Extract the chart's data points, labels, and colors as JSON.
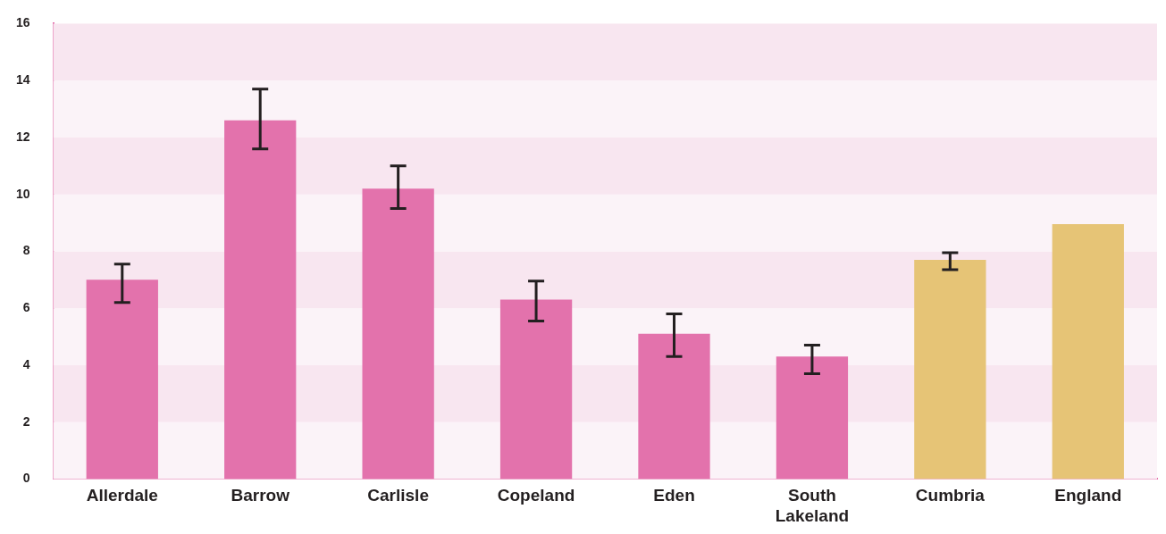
{
  "chart_data": {
    "type": "bar",
    "categories": [
      "Allerdale",
      "Barrow",
      "Carlisle",
      "Copeland",
      "Eden",
      "South Lakeland",
      "Cumbria",
      "England"
    ],
    "values": [
      7.0,
      12.6,
      10.2,
      6.3,
      5.1,
      4.3,
      7.7,
      8.95
    ],
    "colors": [
      "#e372ac",
      "#e372ac",
      "#e372ac",
      "#e372ac",
      "#e372ac",
      "#e372ac",
      "#e6c476",
      "#e6c476"
    ],
    "errors": [
      [
        6.2,
        7.55
      ],
      [
        11.6,
        13.7
      ],
      [
        9.5,
        11.0
      ],
      [
        5.55,
        6.95
      ],
      [
        4.3,
        5.8
      ],
      [
        3.7,
        4.7
      ],
      [
        7.35,
        7.95
      ],
      null
    ],
    "ylim": [
      0,
      16
    ],
    "yticks": [
      0,
      2,
      4,
      6,
      8,
      10,
      12,
      14,
      16
    ],
    "legend": false
  }
}
